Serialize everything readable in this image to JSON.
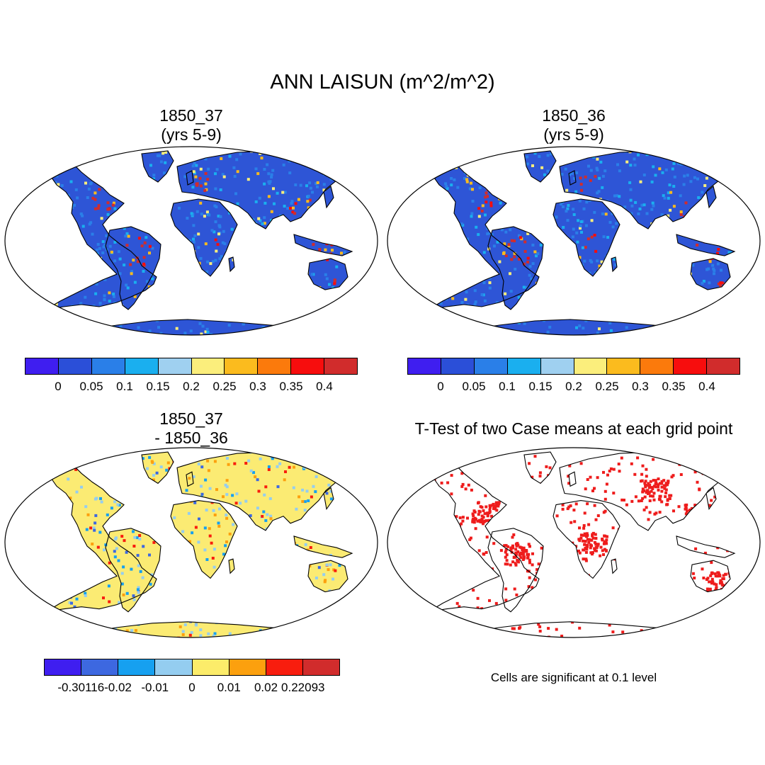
{
  "figure_title": "ANN LAISUN (m^2/m^2)",
  "panels": {
    "case1": {
      "title_line1": "1850_37",
      "title_line2": "(yrs 5-9)"
    },
    "case2": {
      "title_line1": "1850_36",
      "title_line2": "(yrs 5-9)"
    },
    "diff": {
      "title_line1": "1850_37",
      "title_line2": "- 1850_36"
    },
    "ttest": {
      "title": "T-Test of two Case means at each grid point",
      "note": "Cells are significant at 0.1 level"
    }
  },
  "colorbars": {
    "absolute": {
      "colors": [
        "#3f1ef0",
        "#2b4fd8",
        "#2a7fe8",
        "#1aafef",
        "#9fd0f0",
        "#fbee7c",
        "#fbbb1e",
        "#fb7a0c",
        "#f70d0d",
        "#d12c2c"
      ],
      "labels": [
        "0",
        "0.05",
        "0.1",
        "0.15",
        "0.2",
        "0.25",
        "0.3",
        "0.35",
        "0.4"
      ]
    },
    "difference": {
      "colors": [
        "#3f1ef0",
        "#3d68e0",
        "#16a0f0",
        "#94cdf0",
        "#fcec6a",
        "#fca00e",
        "#f81d0e",
        "#d12c2c"
      ],
      "labels": [
        "-0.30116",
        "-0.02",
        "-0.01",
        "0",
        "0.01",
        "0.02",
        "0.22093"
      ]
    }
  },
  "map_colors": {
    "land_absolute": "#2e55d6",
    "land_difference": "#fbeb73",
    "significant": "#ee1c1c"
  }
}
